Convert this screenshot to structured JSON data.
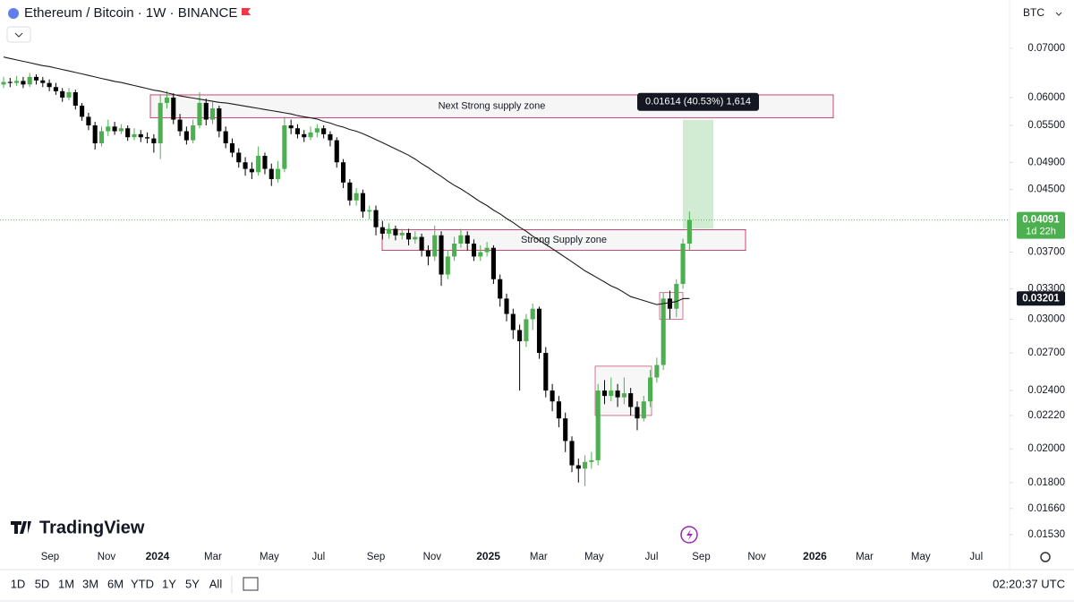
{
  "header": {
    "symbol": "Ethereum / Bitcoin · 1W · BINANCE",
    "currency": "BTC"
  },
  "branding": "TradingView",
  "toolbar": {
    "ranges": [
      "1D",
      "5D",
      "1M",
      "3M",
      "6M",
      "YTD",
      "1Y",
      "5Y",
      "All"
    ],
    "clock": "02:20:37 UTC"
  },
  "chart_data": {
    "type": "candlestick",
    "log_scale": true,
    "grid": false,
    "up_color": "#4caf50",
    "down_color": "#000000",
    "ma_color": "#1a1a1a",
    "ylim": [
      0.01483,
      0.0814
    ],
    "yticks": [
      {
        "value": 0.07,
        "label": "0.07000"
      },
      {
        "value": 0.06,
        "label": "0.06000"
      },
      {
        "value": 0.055,
        "label": "0.05500"
      },
      {
        "value": 0.049,
        "label": "0.04900"
      },
      {
        "value": 0.045,
        "label": "0.04500"
      },
      {
        "value": 0.037,
        "label": "0.03700"
      },
      {
        "value": 0.033,
        "label": "0.03300"
      },
      {
        "value": 0.03,
        "label": "0.03000"
      },
      {
        "value": 0.027,
        "label": "0.02700"
      },
      {
        "value": 0.024,
        "label": "0.02400"
      },
      {
        "value": 0.0222,
        "label": "0.02220"
      },
      {
        "value": 0.02,
        "label": "0.02000"
      },
      {
        "value": 0.018,
        "label": "0.01800"
      },
      {
        "value": 0.0166,
        "label": "0.01660"
      },
      {
        "value": 0.0153,
        "label": "0.01530"
      }
    ],
    "xlim": [
      -0.55,
      154
    ],
    "xticks": [
      {
        "value": 7.12,
        "label": "Sep"
      },
      {
        "value": 15.75,
        "label": "Nov"
      },
      {
        "value": 23.56,
        "label": "2024"
      },
      {
        "value": 32.05,
        "label": "Mar"
      },
      {
        "value": 40.68,
        "label": "May"
      },
      {
        "value": 48.2,
        "label": "Jul"
      },
      {
        "value": 57,
        "label": "Sep"
      },
      {
        "value": 65.6,
        "label": "Nov"
      },
      {
        "value": 74.2,
        "label": "2025"
      },
      {
        "value": 81.9,
        "label": "Mar"
      },
      {
        "value": 90.4,
        "label": "May"
      },
      {
        "value": 99.2,
        "label": "Jul"
      },
      {
        "value": 106.8,
        "label": "Sep"
      },
      {
        "value": 115.3,
        "label": "Nov"
      },
      {
        "value": 124.2,
        "label": "2026"
      },
      {
        "value": 131.8,
        "label": "Mar"
      },
      {
        "value": 140.4,
        "label": "May"
      },
      {
        "value": 148.9,
        "label": "Jul"
      }
    ],
    "open": [
      0.0625,
      0.063,
      0.0628,
      0.0632,
      0.0625,
      0.064,
      0.0633,
      0.0628,
      0.062,
      0.0612,
      0.06,
      0.061,
      0.0585,
      0.0565,
      0.055,
      0.052,
      0.054,
      0.0548,
      0.054,
      0.0545,
      0.053,
      0.0535,
      0.053,
      0.0528,
      0.052,
      0.059,
      0.06,
      0.056,
      0.054,
      0.0525,
      0.055,
      0.059,
      0.056,
      0.058,
      0.054,
      0.052,
      0.0505,
      0.049,
      0.048,
      0.0475,
      0.05,
      0.048,
      0.0465,
      0.048,
      0.055,
      0.0545,
      0.0535,
      0.053,
      0.0538,
      0.0545,
      0.0535,
      0.0525,
      0.049,
      0.046,
      0.0435,
      0.0445,
      0.042,
      0.0422,
      0.04,
      0.0392,
      0.0398,
      0.039,
      0.0393,
      0.0385,
      0.0388,
      0.0372,
      0.0365,
      0.039,
      0.0345,
      0.0365,
      0.038,
      0.039,
      0.038,
      0.0365,
      0.037,
      0.0375,
      0.034,
      0.032,
      0.0305,
      0.029,
      0.028,
      0.03,
      0.031,
      0.027,
      0.024,
      0.0232,
      0.022,
      0.0205,
      0.019,
      0.0188,
      0.0192,
      0.0193,
      0.024,
      0.0236,
      0.024,
      0.0235,
      0.0238,
      0.0228,
      0.022,
      0.0232,
      0.025,
      0.026,
      0.032,
      0.031,
      0.0335,
      0.038
    ],
    "high": [
      0.064,
      0.0638,
      0.0642,
      0.064,
      0.0648,
      0.0645,
      0.064,
      0.0635,
      0.0628,
      0.0618,
      0.0618,
      0.0615,
      0.059,
      0.0572,
      0.0556,
      0.0548,
      0.056,
      0.0556,
      0.0552,
      0.055,
      0.0545,
      0.0542,
      0.0538,
      0.0535,
      0.0605,
      0.0612,
      0.0608,
      0.057,
      0.0548,
      0.056,
      0.061,
      0.0598,
      0.0592,
      0.0585,
      0.0548,
      0.0528,
      0.0512,
      0.0498,
      0.049,
      0.0515,
      0.0505,
      0.0488,
      0.0492,
      0.0565,
      0.056,
      0.0552,
      0.0542,
      0.0548,
      0.0552,
      0.055,
      0.054,
      0.053,
      0.0495,
      0.0465,
      0.0452,
      0.045,
      0.0428,
      0.0428,
      0.0408,
      0.0405,
      0.0402,
      0.0398,
      0.0398,
      0.0395,
      0.0392,
      0.0378,
      0.0402,
      0.0395,
      0.0372,
      0.0388,
      0.0398,
      0.0395,
      0.0385,
      0.0378,
      0.0382,
      0.0378,
      0.0345,
      0.0325,
      0.031,
      0.0295,
      0.0305,
      0.0315,
      0.0312,
      0.0275,
      0.0245,
      0.0236,
      0.0224,
      0.0208,
      0.0194,
      0.0196,
      0.0198,
      0.0245,
      0.0248,
      0.025,
      0.0245,
      0.025,
      0.0242,
      0.0232,
      0.0236,
      0.0256,
      0.0266,
      0.0326,
      0.0328,
      0.034,
      0.0386,
      0.042
    ],
    "low": [
      0.0618,
      0.062,
      0.0622,
      0.0618,
      0.062,
      0.0625,
      0.062,
      0.0612,
      0.0605,
      0.0592,
      0.0595,
      0.0578,
      0.0558,
      0.0542,
      0.051,
      0.0515,
      0.0532,
      0.0534,
      0.0535,
      0.0524,
      0.0525,
      0.0522,
      0.052,
      0.0505,
      0.0495,
      0.058,
      0.0552,
      0.0532,
      0.0518,
      0.052,
      0.0545,
      0.055,
      0.0552,
      0.053,
      0.0512,
      0.0498,
      0.0482,
      0.047,
      0.0465,
      0.047,
      0.0472,
      0.0455,
      0.046,
      0.0475,
      0.0535,
      0.0528,
      0.0522,
      0.0525,
      0.053,
      0.0528,
      0.0515,
      0.0482,
      0.0452,
      0.0428,
      0.0428,
      0.0412,
      0.041,
      0.039,
      0.0385,
      0.0386,
      0.0384,
      0.0385,
      0.0378,
      0.038,
      0.0365,
      0.0355,
      0.036,
      0.0333,
      0.034,
      0.036,
      0.0375,
      0.0372,
      0.036,
      0.036,
      0.0365,
      0.0335,
      0.0312,
      0.0298,
      0.0282,
      0.024,
      0.0275,
      0.029,
      0.0265,
      0.0235,
      0.0225,
      0.0214,
      0.0198,
      0.0186,
      0.018,
      0.0178,
      0.0188,
      0.019,
      0.023,
      0.0232,
      0.0228,
      0.023,
      0.0222,
      0.0212,
      0.0218,
      0.0228,
      0.0246,
      0.0256,
      0.03,
      0.0302,
      0.033,
      0.0372
    ],
    "close": [
      0.063,
      0.0628,
      0.0632,
      0.0625,
      0.064,
      0.0633,
      0.0628,
      0.062,
      0.0612,
      0.06,
      0.061,
      0.0585,
      0.0565,
      0.055,
      0.052,
      0.054,
      0.0548,
      0.054,
      0.0545,
      0.053,
      0.0535,
      0.053,
      0.0528,
      0.052,
      0.059,
      0.06,
      0.056,
      0.054,
      0.0525,
      0.055,
      0.059,
      0.056,
      0.058,
      0.054,
      0.052,
      0.0505,
      0.049,
      0.048,
      0.0475,
      0.05,
      0.048,
      0.0465,
      0.048,
      0.055,
      0.0545,
      0.0535,
      0.053,
      0.0538,
      0.0545,
      0.0535,
      0.0525,
      0.049,
      0.046,
      0.0435,
      0.0445,
      0.042,
      0.0422,
      0.04,
      0.0392,
      0.0398,
      0.039,
      0.0393,
      0.0385,
      0.0388,
      0.0372,
      0.0365,
      0.039,
      0.0345,
      0.0365,
      0.038,
      0.039,
      0.038,
      0.0365,
      0.037,
      0.0375,
      0.034,
      0.032,
      0.0305,
      0.029,
      0.028,
      0.03,
      0.031,
      0.027,
      0.024,
      0.0232,
      0.022,
      0.0205,
      0.019,
      0.0188,
      0.0192,
      0.0193,
      0.024,
      0.0236,
      0.024,
      0.0235,
      0.0238,
      0.0228,
      0.022,
      0.0232,
      0.025,
      0.026,
      0.032,
      0.031,
      0.0335,
      0.038,
      0.04091
    ],
    "ma": [
      0.0681,
      0.0678,
      0.0675,
      0.0672,
      0.0669,
      0.0666,
      0.0663,
      0.0661,
      0.0658,
      0.0655,
      0.0652,
      0.0649,
      0.0646,
      0.0643,
      0.064,
      0.0637,
      0.0634,
      0.0631,
      0.0629,
      0.0626,
      0.0623,
      0.062,
      0.0617,
      0.0614,
      0.0612,
      0.0609,
      0.0606,
      0.0603,
      0.0601,
      0.0599,
      0.0597,
      0.0595,
      0.0593,
      0.0591,
      0.059,
      0.0588,
      0.0586,
      0.0584,
      0.0582,
      0.058,
      0.0578,
      0.0576,
      0.0574,
      0.0572,
      0.057,
      0.0567,
      0.0565,
      0.0563,
      0.0561,
      0.0557,
      0.0554,
      0.055,
      0.0547,
      0.0543,
      0.054,
      0.0536,
      0.0531,
      0.0526,
      0.0521,
      0.0516,
      0.0511,
      0.0506,
      0.0501,
      0.0495,
      0.0488,
      0.0482,
      0.0475,
      0.0469,
      0.0462,
      0.0456,
      0.0451,
      0.0445,
      0.0439,
      0.0433,
      0.0428,
      0.0422,
      0.0417,
      0.0411,
      0.0406,
      0.04,
      0.0395,
      0.0389,
      0.0384,
      0.0379,
      0.0374,
      0.0369,
      0.0364,
      0.0359,
      0.0354,
      0.0349,
      0.0345,
      0.0341,
      0.0337,
      0.0333,
      0.033,
      0.0326,
      0.0322,
      0.032,
      0.0318,
      0.0316,
      0.0314,
      0.0315,
      0.0316,
      0.0317,
      0.032,
      0.03201
    ],
    "countdown": "1d 22h",
    "zones": [
      {
        "label": "Next Strong supply zone",
        "top": 0.0605,
        "bottom": 0.0563
      },
      {
        "label": "Strong Supply zone",
        "top": 0.0397,
        "bottom": 0.0372
      }
    ],
    "boxes": [
      {
        "top": 0.0259,
        "bottom": 0.0222
      },
      {
        "top": 0.0326,
        "bottom": 0.03
      }
    ],
    "measure": {
      "label": "0.01614 (40.53%) 1,614",
      "from": 0.03982,
      "to": 0.05596
    }
  }
}
